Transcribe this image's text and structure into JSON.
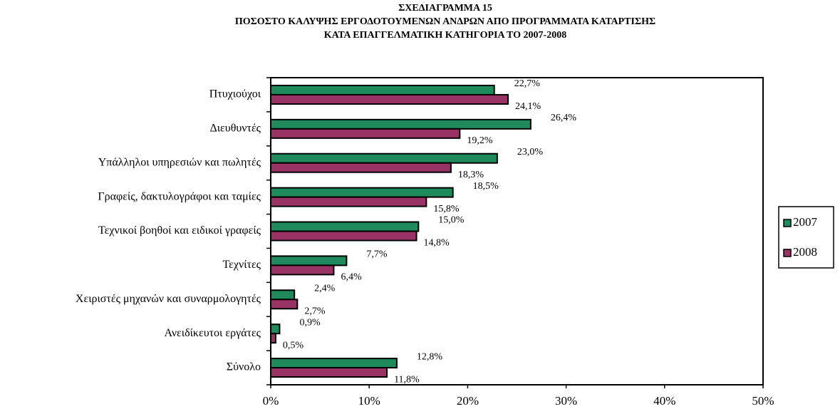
{
  "chart_data": {
    "type": "barh",
    "title": [
      "ΣΧΕΔΙΑΓΡΑΜΜΑ 15",
      "ΠΟΣΟΣΤΟ ΚΑΛΥΨΗΣ ΕΡΓΟΔΟΤΟΥΜΕΝΩΝ ΑΝΔΡΩΝ ΑΠΟ ΠΡΟΓΡΑΜΜΑΤΑ ΚΑΤΑΡΤΙΣΗΣ",
      "ΚΑΤΑ ΕΠΑΓΓΕΛΜΑΤΙΚΗ ΚΑΤΗΓΟΡΙΑ ΤΟ 2007-2008"
    ],
    "categories": [
      "Πτυχιούχοι",
      "Διευθυντές",
      "Υπάλληλοι υπηρεσιών και πωλητές",
      "Γραφείς, δακτυλογράφοι και ταμίες",
      "Τεχνικοί βοηθοί και ειδικοί γραφείς",
      "Τεχνίτες",
      "Χειριστές μηχανών και συναρμολογητές",
      "Ανειδίκευτοι εργάτες",
      "Σύνολο"
    ],
    "series": [
      {
        "name": "2007",
        "color": "#1f8a5c",
        "values": [
          22.7,
          26.4,
          23.0,
          18.5,
          15.0,
          7.7,
          2.4,
          0.9,
          12.8
        ],
        "value_labels": [
          "22,7%",
          "26,4%",
          "23,0%",
          "18,5%",
          "15,0%",
          "7,7%",
          "2,4%",
          "0,9%",
          "12,8%"
        ]
      },
      {
        "name": "2008",
        "color": "#993366",
        "values": [
          24.1,
          19.2,
          18.3,
          15.8,
          14.8,
          6.4,
          2.7,
          0.5,
          11.8
        ],
        "value_labels": [
          "24,1%",
          "19,2%",
          "18,3%",
          "15,8%",
          "14,8%",
          "6,4%",
          "2,7%",
          "0,5%",
          "11,8%"
        ]
      }
    ],
    "xlim": [
      0,
      50
    ],
    "xticks": [
      {
        "value": 0,
        "label": "0%"
      },
      {
        "value": 10,
        "label": "10%"
      },
      {
        "value": 20,
        "label": "20%"
      },
      {
        "value": 30,
        "label": "30%"
      },
      {
        "value": 40,
        "label": "40%"
      },
      {
        "value": 50,
        "label": "50%"
      }
    ],
    "legend": "right"
  }
}
